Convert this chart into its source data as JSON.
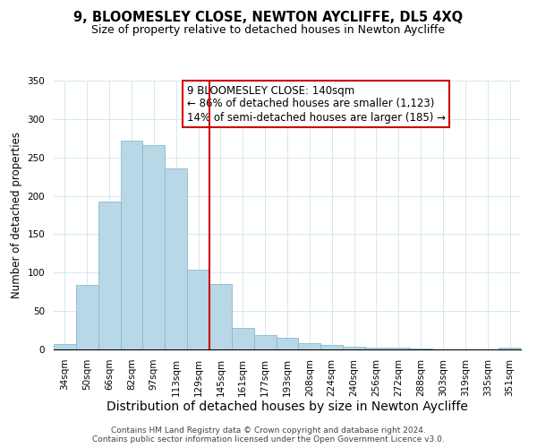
{
  "title": "9, BLOOMESLEY CLOSE, NEWTON AYCLIFFE, DL5 4XQ",
  "subtitle": "Size of property relative to detached houses in Newton Aycliffe",
  "xlabel": "Distribution of detached houses by size in Newton Aycliffe",
  "ylabel": "Number of detached properties",
  "bar_labels": [
    "34sqm",
    "50sqm",
    "66sqm",
    "82sqm",
    "97sqm",
    "113sqm",
    "129sqm",
    "145sqm",
    "161sqm",
    "177sqm",
    "193sqm",
    "208sqm",
    "224sqm",
    "240sqm",
    "256sqm",
    "272sqm",
    "288sqm",
    "303sqm",
    "319sqm",
    "335sqm",
    "351sqm"
  ],
  "bar_values": [
    7,
    84,
    192,
    272,
    266,
    236,
    104,
    85,
    28,
    19,
    15,
    8,
    6,
    3,
    2,
    2,
    1,
    0,
    0,
    0,
    2
  ],
  "bar_color": "#b8d8e8",
  "bar_edge_color": "#8ab8cc",
  "marker_line_color": "#cc0000",
  "annotation_title": "9 BLOOMESLEY CLOSE: 140sqm",
  "annotation_line1": "← 86% of detached houses are smaller (1,123)",
  "annotation_line2": "14% of semi-detached houses are larger (185) →",
  "annotation_box_color": "#ffffff",
  "annotation_box_edge": "#cc0000",
  "ylim": [
    0,
    350
  ],
  "yticks": [
    0,
    50,
    100,
    150,
    200,
    250,
    300,
    350
  ],
  "grid_color": "#d5e8f0",
  "footer1": "Contains HM Land Registry data © Crown copyright and database right 2024.",
  "footer2": "Contains public sector information licensed under the Open Government Licence v3.0.",
  "title_fontsize": 10.5,
  "subtitle_fontsize": 9,
  "xlabel_fontsize": 10,
  "ylabel_fontsize": 8.5,
  "tick_fontsize": 7.5,
  "annotation_fontsize": 8.5,
  "footer_fontsize": 6.5
}
